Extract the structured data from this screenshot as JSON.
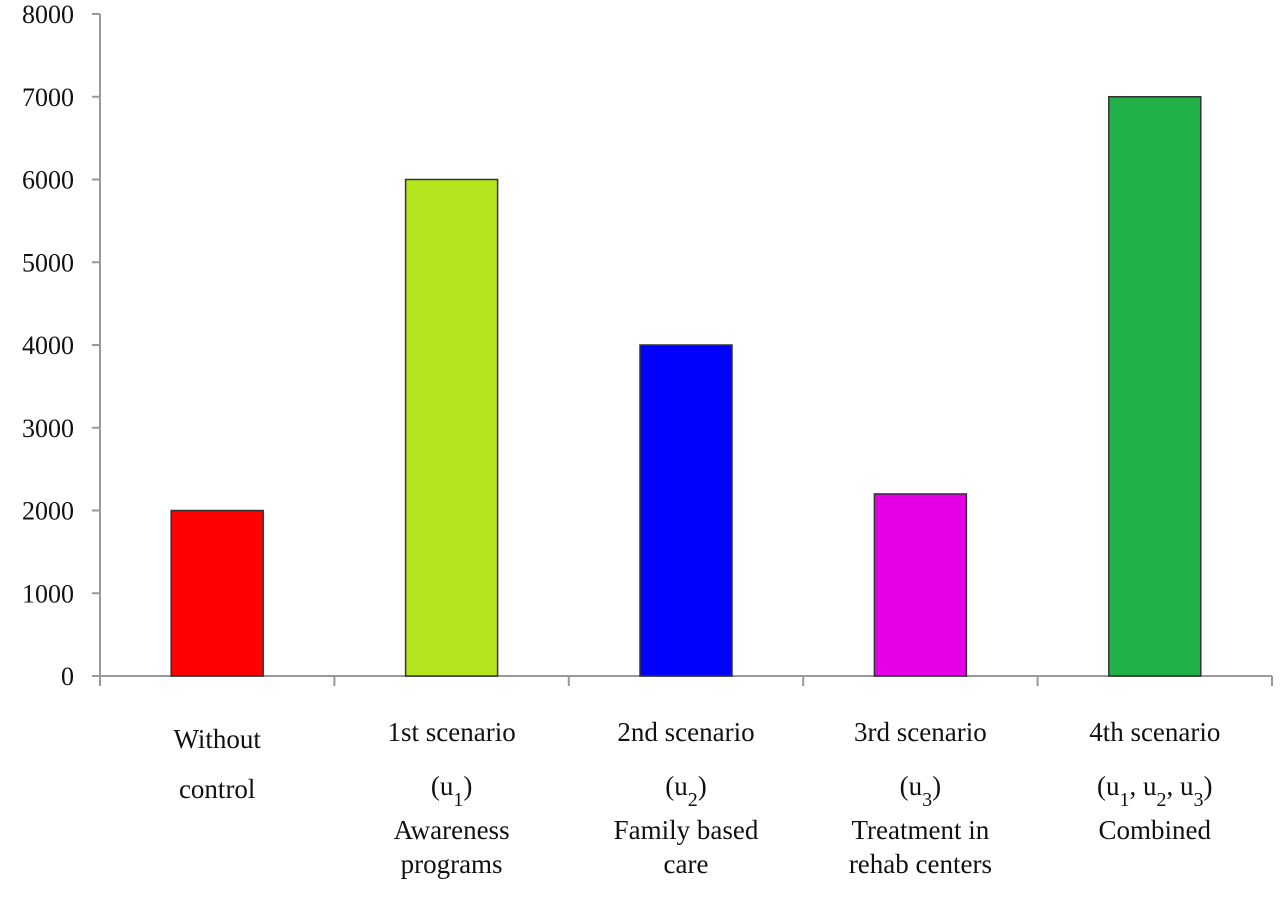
{
  "chart_data": {
    "type": "bar",
    "title": "",
    "xlabel": "",
    "ylabel": "",
    "ylim": [
      0,
      8000
    ],
    "yticks": [
      0,
      1000,
      2000,
      3000,
      4000,
      5000,
      6000,
      7000,
      8000
    ],
    "grid": false,
    "legend": "none",
    "categories": [
      {
        "lines": [
          "Without",
          "control"
        ],
        "sub": [],
        "extra": []
      },
      {
        "lines": [
          "1st scenario"
        ],
        "sub": [
          "u",
          "1"
        ],
        "extra": [
          "Awareness",
          "programs"
        ]
      },
      {
        "lines": [
          "2nd scenario"
        ],
        "sub": [
          "u",
          "2"
        ],
        "extra": [
          "Family based",
          "care"
        ]
      },
      {
        "lines": [
          "3rd scenario"
        ],
        "sub": [
          "u",
          "3"
        ],
        "extra": [
          "Treatment in",
          "rehab centers"
        ]
      },
      {
        "lines": [
          "4th scenario"
        ],
        "sub": [
          "u",
          "1",
          "u",
          "2",
          "u",
          "3"
        ],
        "extra": [
          "Combined"
        ]
      }
    ],
    "values": [
      2000,
      6000,
      4000,
      2200,
      7000
    ],
    "colors": [
      "#ff0000",
      "#b5e61d",
      "#0000ff",
      "#e600e6",
      "#22b04b"
    ]
  }
}
